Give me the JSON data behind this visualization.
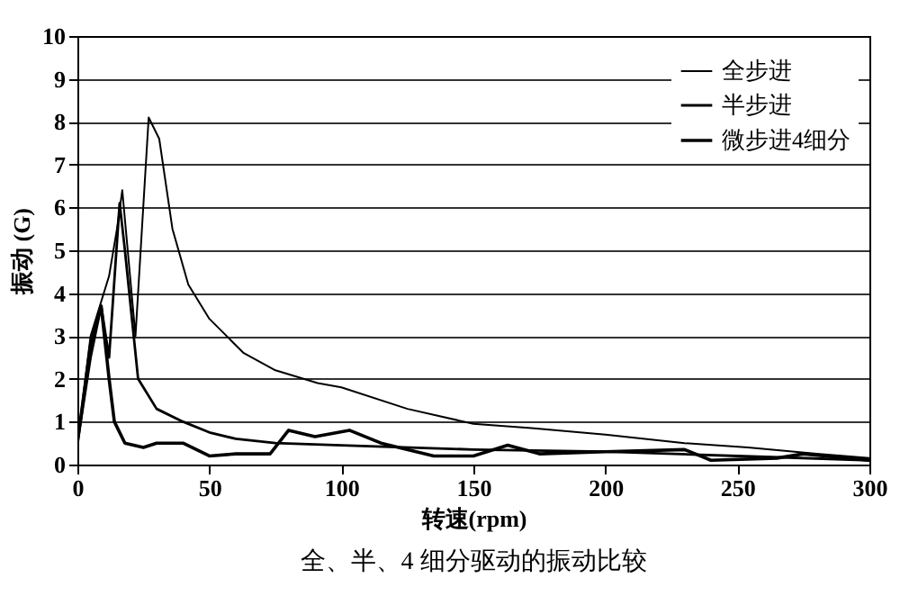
{
  "chart_data": {
    "type": "line",
    "xlabel": "转速(rpm)",
    "ylabel": "振动 (G)",
    "annotations": [
      "全、半、4 细分驱动的振动比较"
    ],
    "xlim": [
      0,
      300
    ],
    "ylim": [
      0,
      10
    ],
    "xticks": [
      0,
      50,
      100,
      150,
      200,
      250,
      300
    ],
    "yticks": [
      0,
      1,
      2,
      3,
      4,
      5,
      6,
      7,
      8,
      9,
      10
    ],
    "grid": "y",
    "legend": "top right",
    "marker": "none",
    "line_style": "solid",
    "series": [
      {
        "name": "全步进",
        "color": "#000000",
        "x": [
          0,
          5,
          12,
          15,
          17,
          22,
          27,
          31,
          36,
          42,
          50,
          63,
          75,
          91,
          100,
          125,
          150,
          172,
          200,
          230,
          254,
          280,
          300
        ],
        "values": [
          0.5,
          3.0,
          4.4,
          5.5,
          6.4,
          3.0,
          8.1,
          7.6,
          5.5,
          4.2,
          3.4,
          2.6,
          2.2,
          1.9,
          1.8,
          1.3,
          0.95,
          0.85,
          0.7,
          0.5,
          0.4,
          0.25,
          0.15
        ]
      },
      {
        "name": "半步进",
        "color": "#000000",
        "x": [
          0,
          5,
          9,
          12,
          16,
          18,
          23,
          30,
          40,
          50,
          60,
          75,
          100,
          150,
          200,
          250,
          300
        ],
        "values": [
          0.5,
          2.5,
          3.7,
          2.5,
          6.1,
          5.0,
          2.0,
          1.3,
          1.0,
          0.75,
          0.6,
          0.5,
          0.45,
          0.35,
          0.3,
          0.2,
          0.1
        ]
      },
      {
        "name": "微步进4细分",
        "color": "#000000",
        "x": [
          0,
          5,
          9,
          12,
          14,
          18,
          25,
          30,
          40,
          50,
          60,
          73,
          80,
          90,
          103,
          115,
          135,
          150,
          163,
          175,
          200,
          230,
          240,
          265,
          275,
          300
        ],
        "values": [
          0.5,
          2.8,
          3.7,
          2.0,
          1.0,
          0.5,
          0.4,
          0.5,
          0.5,
          0.2,
          0.25,
          0.25,
          0.8,
          0.65,
          0.8,
          0.5,
          0.2,
          0.2,
          0.45,
          0.25,
          0.3,
          0.35,
          0.1,
          0.15,
          0.25,
          0.1
        ]
      }
    ]
  }
}
